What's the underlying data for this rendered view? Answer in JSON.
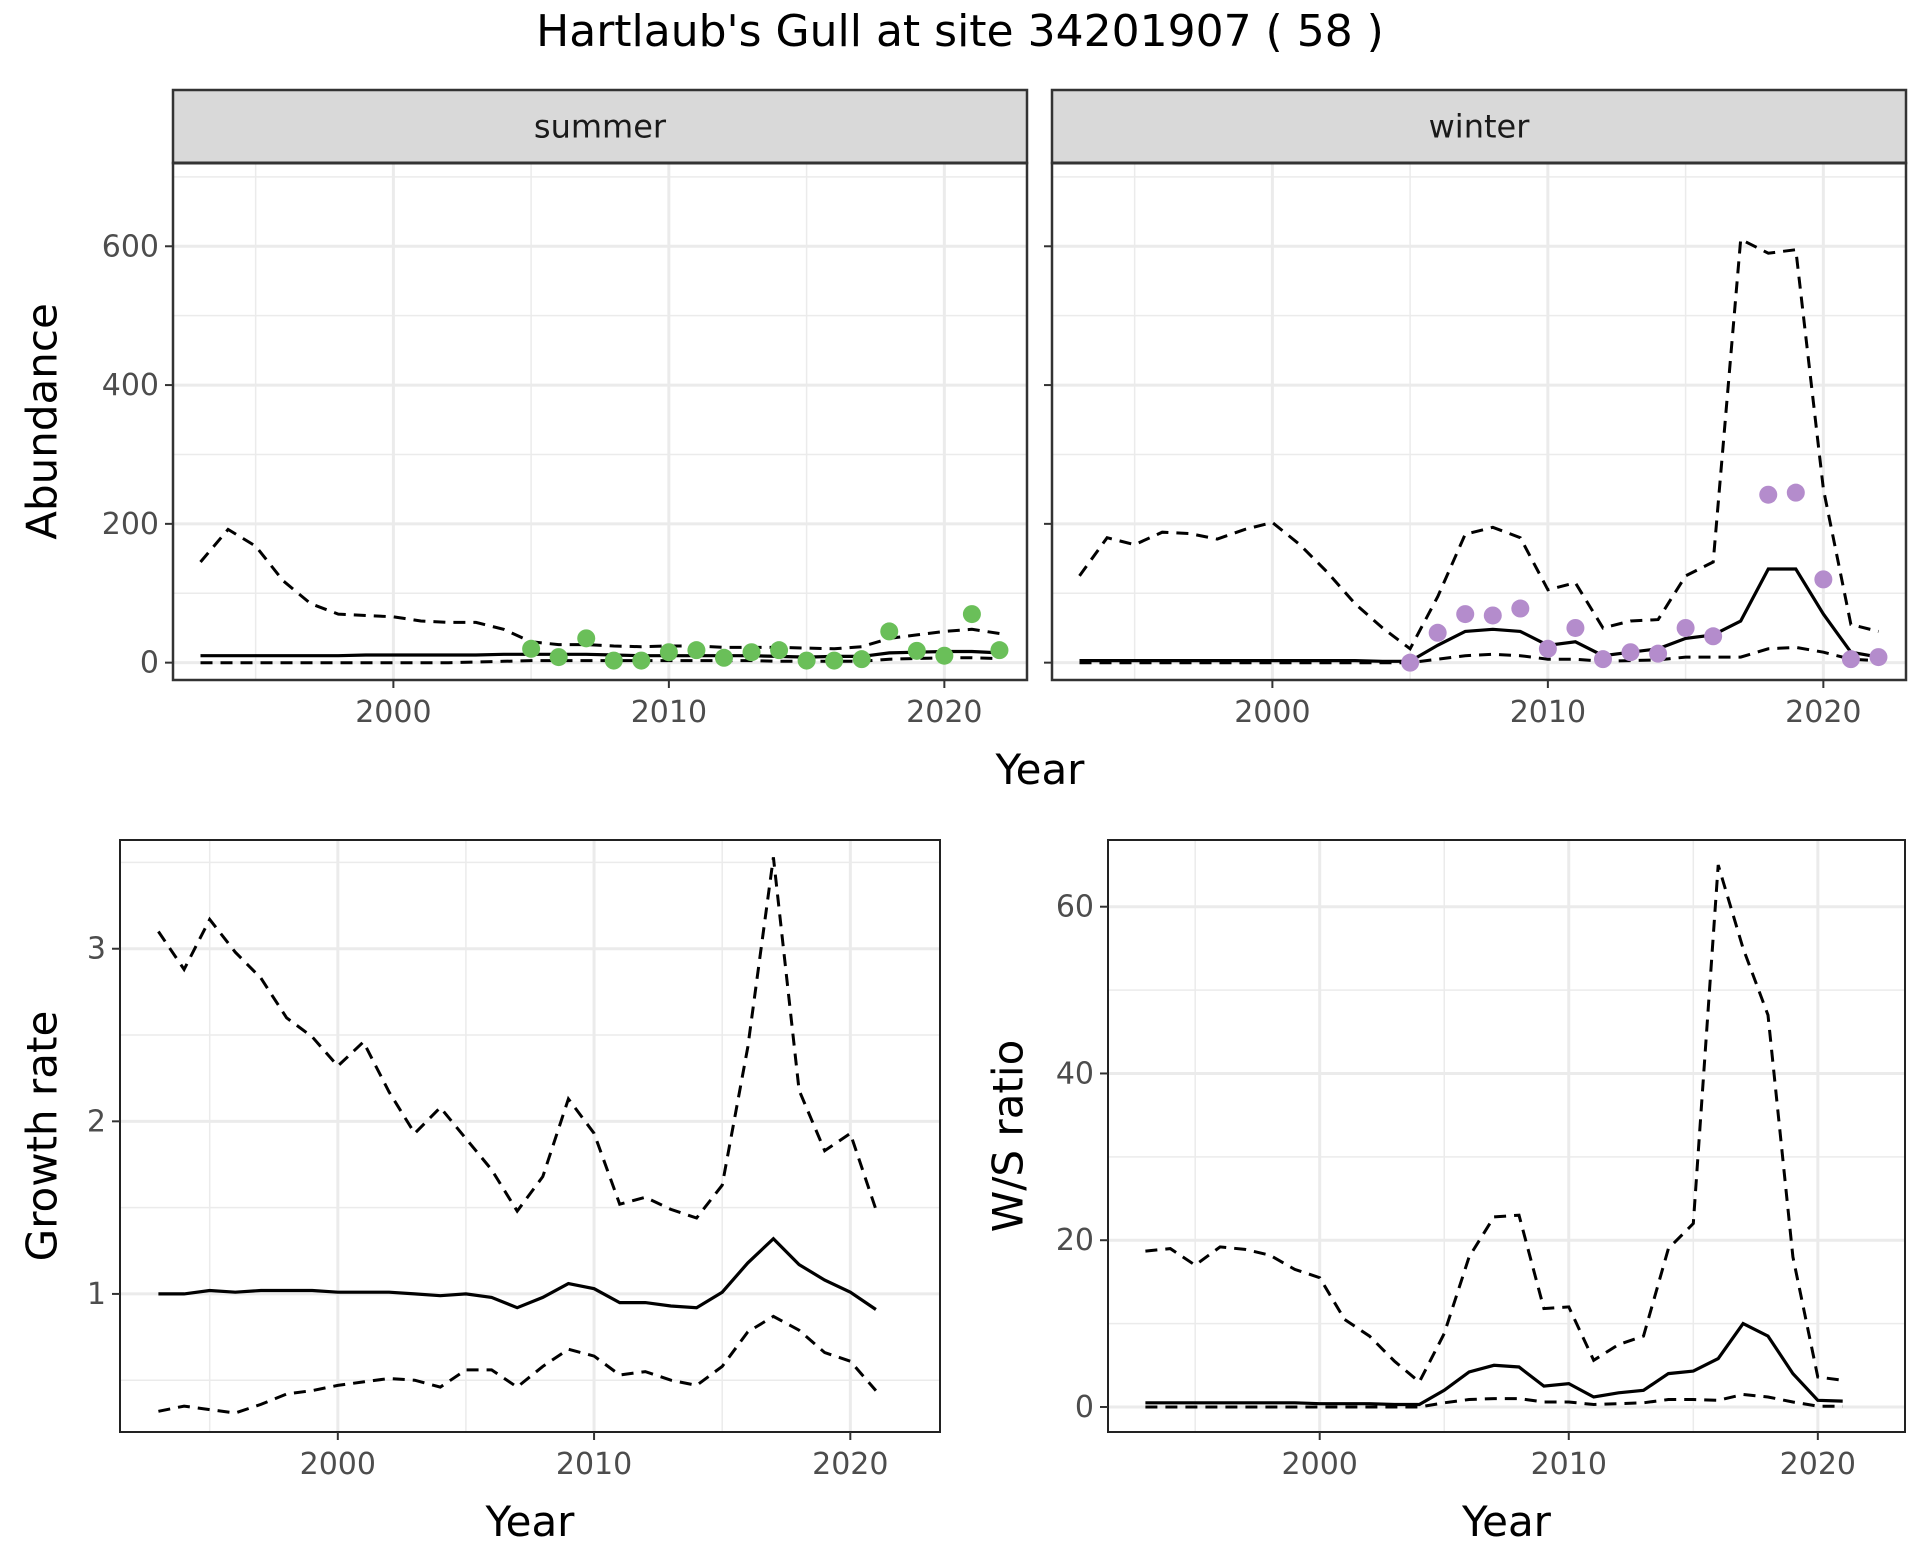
{
  "title": "Hartlaub's Gull at site 34201907 ( 58 )",
  "styles": {
    "summer_point_color": "#6abf59",
    "winter_point_color": "#b48ccc",
    "line_color": "#000000",
    "strip_fill": "#d9d9d9",
    "grid_color": "#ebebeb"
  },
  "chart_data": [
    {
      "type": "line",
      "facet": "summer",
      "xlabel": "Year",
      "ylabel": "Abundance",
      "xlim": [
        1992,
        2023
      ],
      "ylim": [
        -25,
        720
      ],
      "xticks": [
        2000,
        2010,
        2020
      ],
      "yticks": [
        0,
        200,
        400,
        600
      ],
      "grid": true,
      "lines": {
        "x": [
          1993,
          1994,
          1995,
          1996,
          1997,
          1998,
          1999,
          2000,
          2001,
          2002,
          2003,
          2004,
          2005,
          2006,
          2007,
          2008,
          2009,
          2010,
          2011,
          2012,
          2013,
          2014,
          2015,
          2016,
          2017,
          2018,
          2019,
          2020,
          2021,
          2022
        ],
        "estimate": [
          10,
          10,
          10,
          10,
          10,
          10,
          11,
          11,
          11,
          11,
          11,
          12,
          12,
          12,
          12,
          11,
          10,
          10,
          10,
          10,
          10,
          9,
          8,
          9,
          9,
          14,
          15,
          16,
          16,
          14
        ],
        "lower": [
          0,
          0,
          0,
          0,
          0,
          0,
          0,
          0,
          0,
          0,
          1,
          2,
          3,
          3,
          3,
          3,
          3,
          3,
          3,
          3,
          3,
          2,
          2,
          2,
          2,
          5,
          6,
          7,
          7,
          6
        ],
        "upper": [
          145,
          192,
          168,
          118,
          85,
          70,
          68,
          66,
          60,
          58,
          58,
          48,
          30,
          26,
          26,
          24,
          23,
          24,
          24,
          22,
          22,
          22,
          21,
          20,
          23,
          35,
          40,
          45,
          48,
          42
        ]
      },
      "points": {
        "x": [
          2005,
          2006,
          2007,
          2008,
          2009,
          2010,
          2011,
          2012,
          2013,
          2014,
          2015,
          2016,
          2017,
          2018,
          2019,
          2020,
          2021,
          2022
        ],
        "y": [
          20,
          8,
          35,
          3,
          3,
          15,
          18,
          7,
          15,
          18,
          3,
          3,
          5,
          45,
          17,
          10,
          70,
          18
        ]
      }
    },
    {
      "type": "line",
      "facet": "winter",
      "xlabel": "Year",
      "ylabel": "Abundance",
      "xlim": [
        1992,
        2023
      ],
      "ylim": [
        -25,
        720
      ],
      "xticks": [
        2000,
        2010,
        2020
      ],
      "yticks": [
        0,
        200,
        400,
        600
      ],
      "grid": true,
      "lines": {
        "x": [
          1993,
          1994,
          1995,
          1996,
          1997,
          1998,
          1999,
          2000,
          2001,
          2002,
          2003,
          2004,
          2005,
          2006,
          2007,
          2008,
          2009,
          2010,
          2011,
          2012,
          2013,
          2014,
          2015,
          2016,
          2017,
          2018,
          2019,
          2020,
          2021,
          2022
        ],
        "estimate": [
          3,
          3,
          3,
          3,
          3,
          3,
          3,
          3,
          3,
          3,
          3,
          2,
          2,
          25,
          45,
          48,
          45,
          25,
          30,
          10,
          15,
          20,
          35,
          40,
          60,
          135,
          135,
          70,
          15,
          8
        ],
        "lower": [
          0,
          0,
          0,
          0,
          0,
          0,
          0,
          0,
          0,
          0,
          0,
          0,
          0,
          5,
          10,
          12,
          10,
          5,
          5,
          2,
          3,
          4,
          8,
          8,
          8,
          20,
          22,
          15,
          5,
          3
        ],
        "upper": [
          125,
          180,
          170,
          188,
          186,
          178,
          192,
          202,
          170,
          130,
          85,
          50,
          20,
          95,
          185,
          195,
          180,
          105,
          115,
          50,
          60,
          62,
          125,
          145,
          610,
          590,
          595,
          250,
          55,
          45
        ]
      },
      "points": {
        "x": [
          2005,
          2006,
          2007,
          2008,
          2009,
          2010,
          2011,
          2012,
          2013,
          2014,
          2015,
          2016,
          2018,
          2019,
          2020,
          2021,
          2022
        ],
        "y": [
          0,
          43,
          70,
          68,
          78,
          20,
          50,
          5,
          15,
          13,
          50,
          38,
          242,
          245,
          120,
          5,
          8
        ]
      }
    },
    {
      "type": "line",
      "xlabel": "Year",
      "ylabel": "Growth rate",
      "xlim": [
        1991.5,
        2023.5
      ],
      "ylim": [
        0.2,
        3.63
      ],
      "xticks": [
        2000,
        2010,
        2020
      ],
      "yticks": [
        1,
        2,
        3
      ],
      "grid": true,
      "lines": {
        "x": [
          1993,
          1994,
          1995,
          1996,
          1997,
          1998,
          1999,
          2000,
          2001,
          2002,
          2003,
          2004,
          2005,
          2006,
          2007,
          2008,
          2009,
          2010,
          2011,
          2012,
          2013,
          2014,
          2015,
          2016,
          2017,
          2018,
          2019,
          2020,
          2021
        ],
        "estimate": [
          1.0,
          1.0,
          1.02,
          1.01,
          1.02,
          1.02,
          1.02,
          1.01,
          1.01,
          1.01,
          1.0,
          0.99,
          1.0,
          0.98,
          0.92,
          0.98,
          1.06,
          1.03,
          0.95,
          0.95,
          0.93,
          0.92,
          1.01,
          1.18,
          1.32,
          1.17,
          1.08,
          1.01,
          0.91
        ],
        "lower": [
          0.32,
          0.35,
          0.33,
          0.31,
          0.36,
          0.42,
          0.44,
          0.47,
          0.49,
          0.51,
          0.5,
          0.46,
          0.56,
          0.56,
          0.46,
          0.58,
          0.68,
          0.64,
          0.53,
          0.55,
          0.5,
          0.47,
          0.58,
          0.78,
          0.87,
          0.79,
          0.66,
          0.61,
          0.44
        ],
        "upper": [
          3.1,
          2.88,
          3.17,
          2.98,
          2.83,
          2.6,
          2.49,
          2.32,
          2.46,
          2.17,
          1.93,
          2.08,
          1.9,
          1.72,
          1.48,
          1.68,
          2.13,
          1.93,
          1.52,
          1.56,
          1.49,
          1.44,
          1.63,
          2.43,
          3.53,
          2.18,
          1.83,
          1.93,
          1.49
        ]
      }
    },
    {
      "type": "line",
      "xlabel": "Year",
      "ylabel": "W/S ratio",
      "xlim": [
        1991.5,
        2023.5
      ],
      "ylim": [
        -3,
        68
      ],
      "xticks": [
        2000,
        2010,
        2020
      ],
      "yticks": [
        0,
        20,
        40,
        60
      ],
      "grid": true,
      "lines": {
        "x": [
          1993,
          1994,
          1995,
          1996,
          1997,
          1998,
          1999,
          2000,
          2001,
          2002,
          2003,
          2004,
          2005,
          2006,
          2007,
          2008,
          2009,
          2010,
          2011,
          2012,
          2013,
          2014,
          2015,
          2016,
          2017,
          2018,
          2019,
          2020,
          2021
        ],
        "estimate": [
          0.5,
          0.5,
          0.5,
          0.5,
          0.5,
          0.5,
          0.5,
          0.4,
          0.4,
          0.4,
          0.3,
          0.3,
          2.0,
          4.2,
          5.0,
          4.8,
          2.5,
          2.8,
          1.2,
          1.7,
          2.0,
          4.0,
          4.3,
          5.8,
          10.0,
          8.5,
          4.0,
          0.8,
          0.7
        ],
        "lower": [
          0,
          0,
          0,
          0,
          0,
          0,
          0,
          0,
          0,
          0,
          0,
          0,
          0.5,
          0.9,
          1.0,
          1.0,
          0.6,
          0.6,
          0.3,
          0.4,
          0.5,
          0.9,
          0.9,
          0.8,
          1.5,
          1.2,
          0.6,
          0.1,
          0.1
        ],
        "upper": [
          18.7,
          19.0,
          17.0,
          19.2,
          18.9,
          18.2,
          16.5,
          15.5,
          10.5,
          8.5,
          5.5,
          3.0,
          8.8,
          18.0,
          22.8,
          23.0,
          11.8,
          12.0,
          5.6,
          7.5,
          8.5,
          19.0,
          22.0,
          65.0,
          55.0,
          47.0,
          18.0,
          3.6,
          3.2
        ]
      }
    }
  ]
}
